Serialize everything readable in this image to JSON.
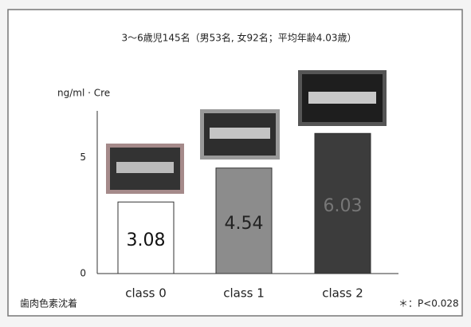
{
  "chart_data": {
    "type": "bar",
    "title": "3～6歳児145名（男53名, 女92名；平均年齢4.03歳）",
    "y_label": "ng/ml · Cre",
    "x_label": "歯肉色素沈着",
    "annotation": "＊：P<0.028",
    "categories": [
      "class 0",
      "class 1",
      "class 2"
    ],
    "values": [
      3.08,
      4.54,
      6.03
    ],
    "colors": [
      "#ffffff",
      "#8c8c8c",
      "#3c3c3c"
    ],
    "ylim": [
      0,
      7
    ],
    "yticks": [
      0,
      5
    ],
    "grid": false
  }
}
